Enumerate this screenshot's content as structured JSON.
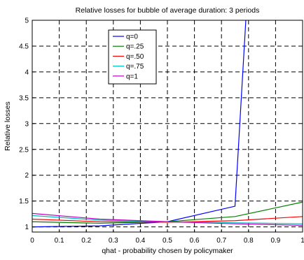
{
  "chart_data": {
    "type": "line",
    "title": "Relative losses for bubble of average duration: 3 periods",
    "xlabel": "qhat - probability chosen by policymaker",
    "ylabel": "Relative losses",
    "xlim": [
      0,
      1
    ],
    "ylim": [
      0.9,
      5
    ],
    "x_ticks": [
      0,
      0.1,
      0.2,
      0.3,
      0.4,
      0.5,
      0.6,
      0.7,
      0.8,
      0.9,
      1
    ],
    "x_tick_labels": [
      "0",
      "0.1",
      "0.2",
      "0.3",
      "0.4",
      "0.5",
      "0.6",
      "0.7",
      "0.8",
      "0.9",
      "1"
    ],
    "y_ticks": [
      1,
      1.5,
      2,
      2.5,
      3,
      3.5,
      4,
      4.5,
      5
    ],
    "y_tick_labels": [
      "1",
      "1.5",
      "2",
      "2.5",
      "3",
      "3.5",
      "4",
      "4.5",
      "5"
    ],
    "grid": true,
    "grid_style": "dashed",
    "legend_position": "top-center",
    "series": [
      {
        "name": "q=0",
        "color": "#0000ff",
        "x": [
          0,
          0.25,
          0.5,
          0.75,
          0.79
        ],
        "y": [
          1.0,
          1.02,
          1.1,
          1.4,
          5.0
        ]
      },
      {
        "name": "q=.25",
        "color": "#008000",
        "x": [
          0,
          0.25,
          0.5,
          0.75,
          1.0
        ],
        "y": [
          1.1,
          1.07,
          1.1,
          1.2,
          1.48
        ]
      },
      {
        "name": "q=.50",
        "color": "#ff0000",
        "x": [
          0,
          0.25,
          0.5,
          0.75,
          1.0
        ],
        "y": [
          1.15,
          1.1,
          1.09,
          1.12,
          1.2
        ]
      },
      {
        "name": "q=.75",
        "color": "#00bfbf",
        "x": [
          0,
          0.25,
          0.5,
          0.75,
          1.0
        ],
        "y": [
          1.22,
          1.13,
          1.1,
          1.08,
          1.06
        ]
      },
      {
        "name": "q=1",
        "color": "#bf00bf",
        "x": [
          0,
          0.25,
          0.5,
          0.75,
          1.0
        ],
        "y": [
          1.26,
          1.15,
          1.1,
          1.06,
          1.03
        ]
      }
    ]
  }
}
